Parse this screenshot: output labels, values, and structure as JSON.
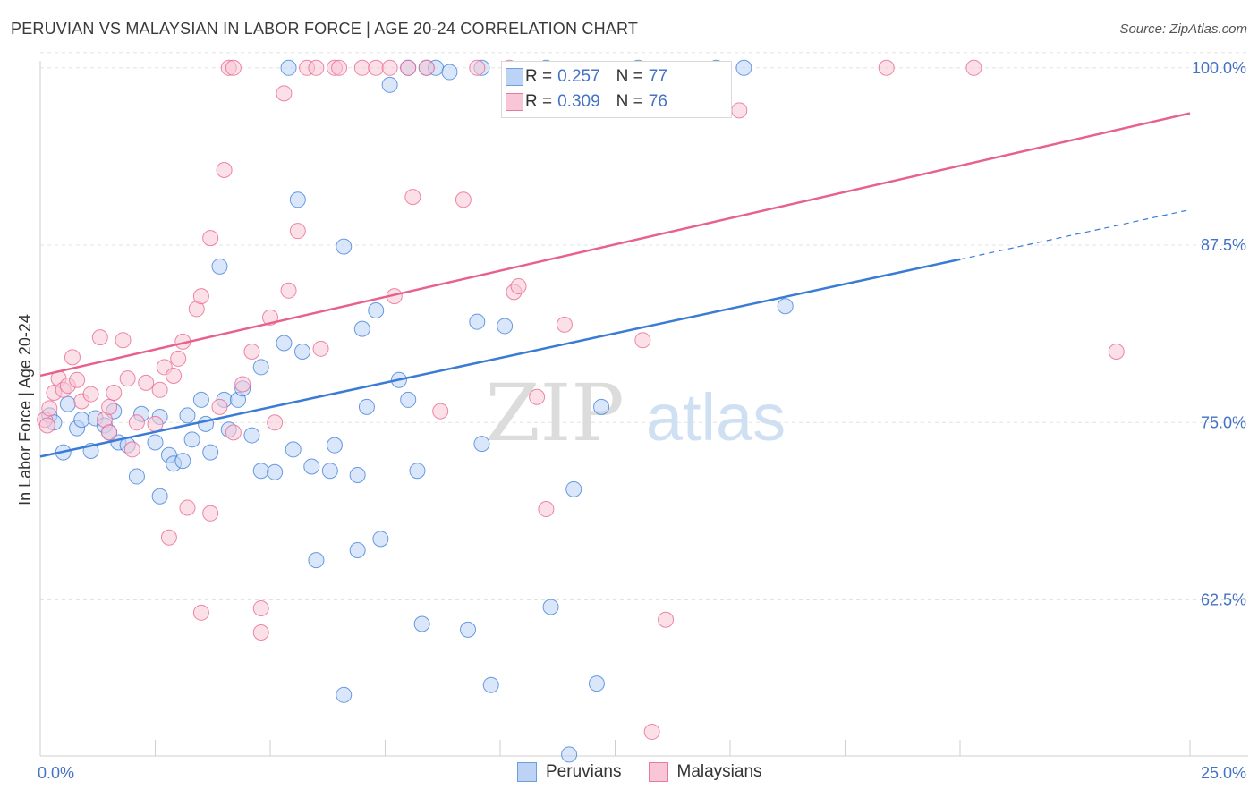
{
  "title": "PERUVIAN VS MALAYSIAN IN LABOR FORCE | AGE 20-24 CORRELATION CHART",
  "source": "Source: ZipAtlas.com",
  "watermark": {
    "zip": "ZIP",
    "atlas": "atlas"
  },
  "legend": {
    "series": [
      {
        "name": "Peruvians",
        "r_label": "R =",
        "r_value": "0.257",
        "n_label": "N =",
        "n_value": "77",
        "color": "#6c9ee0",
        "fill": "#bcd3f5"
      },
      {
        "name": "Malaysians",
        "r_label": "R =",
        "r_value": "0.309",
        "n_label": "N =",
        "n_value": "76",
        "color": "#e87aa0",
        "fill": "#f8c6d6"
      }
    ]
  },
  "chart_data": {
    "type": "scatter",
    "title": "PERUVIAN VS MALAYSIAN IN LABOR FORCE | AGE 20-24 CORRELATION CHART",
    "xlabel": "",
    "ylabel": "In Labor Force | Age 20-24",
    "xlim": [
      0,
      25
    ],
    "ylim": [
      51.5,
      101.5
    ],
    "x_tick_labels": [
      "0.0%",
      "25.0%"
    ],
    "y_ticks": [
      62.5,
      75.0,
      87.5,
      100.0
    ],
    "y_tick_labels": [
      "62.5%",
      "75.0%",
      "87.5%",
      "100.0%"
    ],
    "series": [
      {
        "name": "Peruvians",
        "color": "#3a7bd5",
        "fill": "#bcd3f5",
        "trend": {
          "x0": 0,
          "y0": 72.6,
          "x1": 20,
          "y1": 86.5,
          "dash_x1": 25,
          "dash_y1": 90.0
        },
        "points": [
          [
            0.2,
            75.5
          ],
          [
            0.5,
            72.9
          ],
          [
            0.6,
            76.3
          ],
          [
            0.8,
            74.6
          ],
          [
            0.9,
            75.2
          ],
          [
            1.1,
            73.0
          ],
          [
            1.2,
            75.3
          ],
          [
            1.4,
            74.8
          ],
          [
            1.5,
            74.3
          ],
          [
            1.6,
            75.8
          ],
          [
            1.7,
            73.6
          ],
          [
            1.9,
            73.4
          ],
          [
            2.1,
            71.2
          ],
          [
            2.2,
            75.6
          ],
          [
            2.5,
            73.6
          ],
          [
            2.6,
            75.4
          ],
          [
            2.6,
            69.8
          ],
          [
            2.8,
            72.7
          ],
          [
            2.9,
            72.1
          ],
          [
            3.1,
            72.3
          ],
          [
            3.2,
            75.5
          ],
          [
            3.3,
            73.8
          ],
          [
            3.5,
            76.6
          ],
          [
            3.6,
            74.9
          ],
          [
            3.7,
            72.9
          ],
          [
            3.9,
            86.0
          ],
          [
            4.0,
            76.6
          ],
          [
            4.1,
            74.5
          ],
          [
            4.3,
            76.6
          ],
          [
            4.4,
            77.4
          ],
          [
            4.6,
            74.1
          ],
          [
            4.8,
            71.6
          ],
          [
            4.8,
            78.9
          ],
          [
            5.1,
            71.5
          ],
          [
            5.3,
            80.6
          ],
          [
            5.5,
            73.1
          ],
          [
            5.7,
            80.0
          ],
          [
            5.9,
            71.9
          ],
          [
            6.0,
            65.3
          ],
          [
            6.3,
            71.6
          ],
          [
            6.4,
            73.4
          ],
          [
            6.6,
            55.8
          ],
          [
            6.6,
            87.4
          ],
          [
            6.9,
            71.3
          ],
          [
            6.9,
            66.0
          ],
          [
            7.0,
            81.6
          ],
          [
            7.1,
            76.1
          ],
          [
            7.3,
            82.9
          ],
          [
            7.4,
            66.8
          ],
          [
            7.6,
            98.8
          ],
          [
            7.8,
            78.0
          ],
          [
            8.0,
            76.6
          ],
          [
            8.2,
            71.6
          ],
          [
            8.3,
            60.8
          ],
          [
            8.4,
            100.0
          ],
          [
            8.6,
            100.0
          ],
          [
            8.9,
            99.7
          ],
          [
            9.3,
            60.4
          ],
          [
            9.5,
            82.1
          ],
          [
            9.6,
            100.0
          ],
          [
            9.6,
            73.5
          ],
          [
            9.8,
            56.5
          ],
          [
            10.1,
            81.8
          ],
          [
            11.0,
            100.0
          ],
          [
            11.1,
            62.0
          ],
          [
            11.5,
            51.6
          ],
          [
            11.6,
            70.3
          ],
          [
            12.1,
            56.6
          ],
          [
            12.2,
            76.1
          ],
          [
            13.0,
            100.0
          ],
          [
            14.7,
            100.0
          ],
          [
            15.3,
            100.0
          ],
          [
            16.2,
            83.2
          ],
          [
            5.4,
            100.0
          ],
          [
            8.0,
            100.0
          ],
          [
            5.6,
            90.7
          ],
          [
            0.3,
            75.0
          ]
        ]
      },
      {
        "name": "Malaysians",
        "color": "#e8608e",
        "fill": "#f8c6d6",
        "trend": {
          "x0": 0,
          "y0": 78.3,
          "x1": 25,
          "y1": 96.8
        },
        "points": [
          [
            0.1,
            75.2
          ],
          [
            0.2,
            76.0
          ],
          [
            0.3,
            77.1
          ],
          [
            0.4,
            78.1
          ],
          [
            0.5,
            77.3
          ],
          [
            0.6,
            77.6
          ],
          [
            0.7,
            79.6
          ],
          [
            0.8,
            78.0
          ],
          [
            0.9,
            76.5
          ],
          [
            1.1,
            77.0
          ],
          [
            1.3,
            81.0
          ],
          [
            1.4,
            75.2
          ],
          [
            1.5,
            76.1
          ],
          [
            1.5,
            74.3
          ],
          [
            1.6,
            77.1
          ],
          [
            1.8,
            80.8
          ],
          [
            1.9,
            78.1
          ],
          [
            2.0,
            73.1
          ],
          [
            2.1,
            75.0
          ],
          [
            2.3,
            77.8
          ],
          [
            2.5,
            74.9
          ],
          [
            2.6,
            77.3
          ],
          [
            2.7,
            78.9
          ],
          [
            2.8,
            66.9
          ],
          [
            2.9,
            78.3
          ],
          [
            3.0,
            79.5
          ],
          [
            3.1,
            80.7
          ],
          [
            3.2,
            69.0
          ],
          [
            3.4,
            83.0
          ],
          [
            3.5,
            61.6
          ],
          [
            3.5,
            83.9
          ],
          [
            3.7,
            88.0
          ],
          [
            3.7,
            68.6
          ],
          [
            3.9,
            76.1
          ],
          [
            4.0,
            92.8
          ],
          [
            4.1,
            100.0
          ],
          [
            4.2,
            100.0
          ],
          [
            4.2,
            74.3
          ],
          [
            4.4,
            77.7
          ],
          [
            4.6,
            80.0
          ],
          [
            4.8,
            61.9
          ],
          [
            4.8,
            60.2
          ],
          [
            5.0,
            82.4
          ],
          [
            5.1,
            75.0
          ],
          [
            5.3,
            98.2
          ],
          [
            5.4,
            84.3
          ],
          [
            5.6,
            88.5
          ],
          [
            5.8,
            100.0
          ],
          [
            6.0,
            100.0
          ],
          [
            6.1,
            80.2
          ],
          [
            6.4,
            100.0
          ],
          [
            6.5,
            100.0
          ],
          [
            7.0,
            100.0
          ],
          [
            7.3,
            100.0
          ],
          [
            7.6,
            100.0
          ],
          [
            7.7,
            83.9
          ],
          [
            8.0,
            100.0
          ],
          [
            8.1,
            90.9
          ],
          [
            8.4,
            100.0
          ],
          [
            8.7,
            75.8
          ],
          [
            9.2,
            90.7
          ],
          [
            9.5,
            100.0
          ],
          [
            10.3,
            84.2
          ],
          [
            10.4,
            84.6
          ],
          [
            10.8,
            76.8
          ],
          [
            11.0,
            68.9
          ],
          [
            11.4,
            81.9
          ],
          [
            13.1,
            80.8
          ],
          [
            13.3,
            53.2
          ],
          [
            13.6,
            61.1
          ],
          [
            15.2,
            97.0
          ],
          [
            18.4,
            100.0
          ],
          [
            20.3,
            100.0
          ],
          [
            23.4,
            80.0
          ],
          [
            10.2,
            100.0
          ],
          [
            0.15,
            74.8
          ]
        ]
      }
    ]
  }
}
